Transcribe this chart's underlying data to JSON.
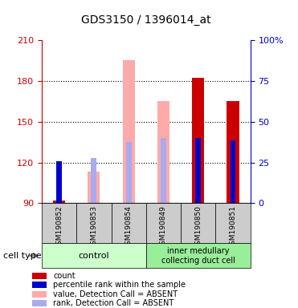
{
  "title": "GDS3150 / 1396014_at",
  "samples": [
    "GSM190852",
    "GSM190853",
    "GSM190854",
    "GSM190849",
    "GSM190850",
    "GSM190851"
  ],
  "ylim": [
    90,
    210
  ],
  "yticks": [
    90,
    120,
    150,
    180,
    210
  ],
  "y2ticks": [
    0,
    25,
    50,
    75,
    100
  ],
  "y2lim": [
    0,
    100
  ],
  "y2labels": [
    "0",
    "25",
    "50",
    "75",
    "100%"
  ],
  "bar_data": {
    "value_absent": [
      null,
      113,
      195,
      165,
      null,
      null
    ],
    "rank_absent": [
      null,
      123,
      135,
      138,
      null,
      null
    ],
    "count": [
      92,
      null,
      null,
      null,
      182,
      165
    ],
    "percentile": [
      121,
      null,
      null,
      null,
      138,
      136
    ]
  },
  "colors": {
    "value_absent": "#ffaaaa",
    "rank_absent": "#aaaaee",
    "count": "#cc0000",
    "percentile": "#0000cc",
    "left_axis": "#cc0000",
    "right_axis": "#0000cc",
    "sample_bg": "#cccccc",
    "control_bg": "#ccffcc",
    "imc_bg": "#99ee99"
  },
  "legend": [
    {
      "label": "count",
      "color": "#cc0000"
    },
    {
      "label": "percentile rank within the sample",
      "color": "#0000cc"
    },
    {
      "label": "value, Detection Call = ABSENT",
      "color": "#ffaaaa"
    },
    {
      "label": "rank, Detection Call = ABSENT",
      "color": "#aaaaee"
    }
  ]
}
